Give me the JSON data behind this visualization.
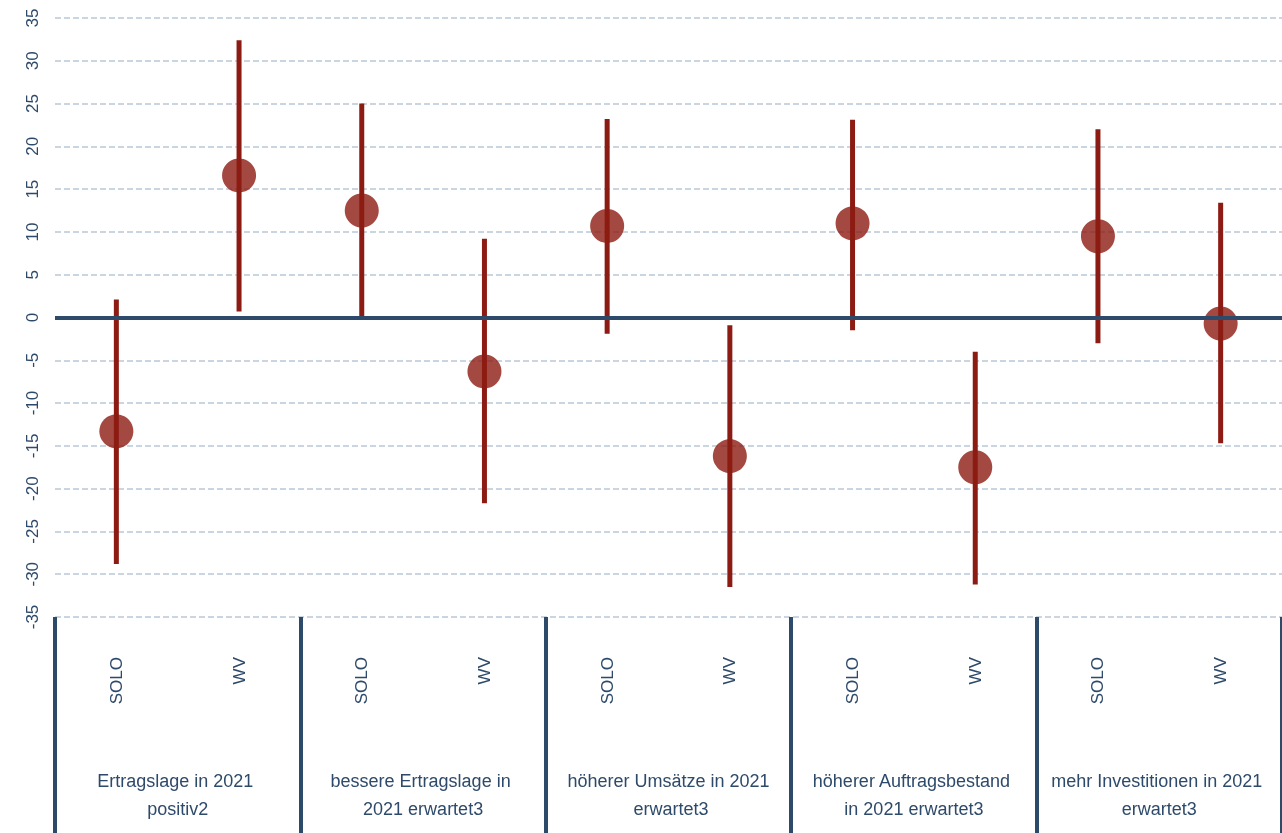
{
  "chart_data": {
    "type": "scatter",
    "categories": [
      "SOLO",
      "WV",
      "SOLO",
      "WV",
      "SOLO",
      "WV",
      "SOLO",
      "WV",
      "SOLO",
      "WV"
    ],
    "values": [
      -13.3,
      16.6,
      12.5,
      -6.3,
      10.7,
      -16.2,
      11,
      -17.5,
      9.5,
      -0.7
    ],
    "errors": [
      [
        -28.8,
        2.1
      ],
      [
        0.7,
        32.4
      ],
      [
        0,
        25
      ],
      [
        -21.7,
        9.2
      ],
      [
        -1.9,
        23.2
      ],
      [
        -31.5,
        -0.9
      ],
      [
        -1.5,
        23.1
      ],
      [
        -31.2,
        -4
      ],
      [
        -3,
        22
      ],
      [
        -14.7,
        13.4
      ]
    ],
    "color": "#8c1c13",
    "marker": "circle",
    "ylim": [
      -35,
      35
    ],
    "yticks": [
      -35,
      -30,
      -25,
      -20,
      -15,
      -10,
      -5,
      0,
      5,
      10,
      15,
      20,
      25,
      30,
      35
    ],
    "grid": "y",
    "ref_lines": [
      {
        "axis": "y",
        "value": 0,
        "label": null,
        "color": "#2e4a6b"
      }
    ],
    "annotations": [
      "Ertragslage in 2021 positiv2",
      "bessere Ertragslage in 2021 erwartet3",
      "höherer Umsätze in 2021 erwartet3",
      "höherer Auftragsbestand in 2021 erwartet3",
      "mehr Investitionen in 2021 erwartet3"
    ]
  }
}
